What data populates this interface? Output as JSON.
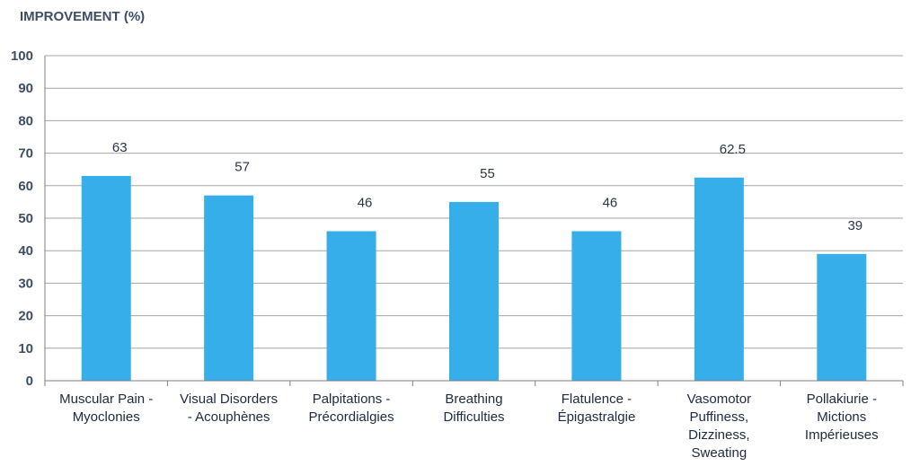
{
  "chart_data": {
    "type": "bar",
    "title": "",
    "ylabel": "IMPROVEMENT (%)",
    "xlabel": "",
    "ylim": [
      0,
      100
    ],
    "yticks": [
      0,
      10,
      20,
      30,
      40,
      50,
      60,
      70,
      80,
      90,
      100
    ],
    "grid": true,
    "bar_color": "#35aeea",
    "categories": [
      [
        "Muscular Pain -",
        "Myoclonies"
      ],
      [
        "Visual Disorders",
        "- Acouphènes"
      ],
      [
        "Palpitations -",
        "Précordialgies"
      ],
      [
        "Breathing",
        "Difficulties"
      ],
      [
        "Flatulence -",
        "Épigastralgie"
      ],
      [
        "Vasomotor",
        "Puffiness,",
        "Dizziness,",
        "Sweating"
      ],
      [
        "Pollakiurie -",
        "Mictions",
        "Impérieuses"
      ]
    ],
    "values": [
      63,
      57,
      46,
      55,
      46,
      62.5,
      39
    ],
    "data_labels": [
      "63",
      "57",
      "46",
      "55",
      "46",
      "62.5",
      "39"
    ]
  }
}
